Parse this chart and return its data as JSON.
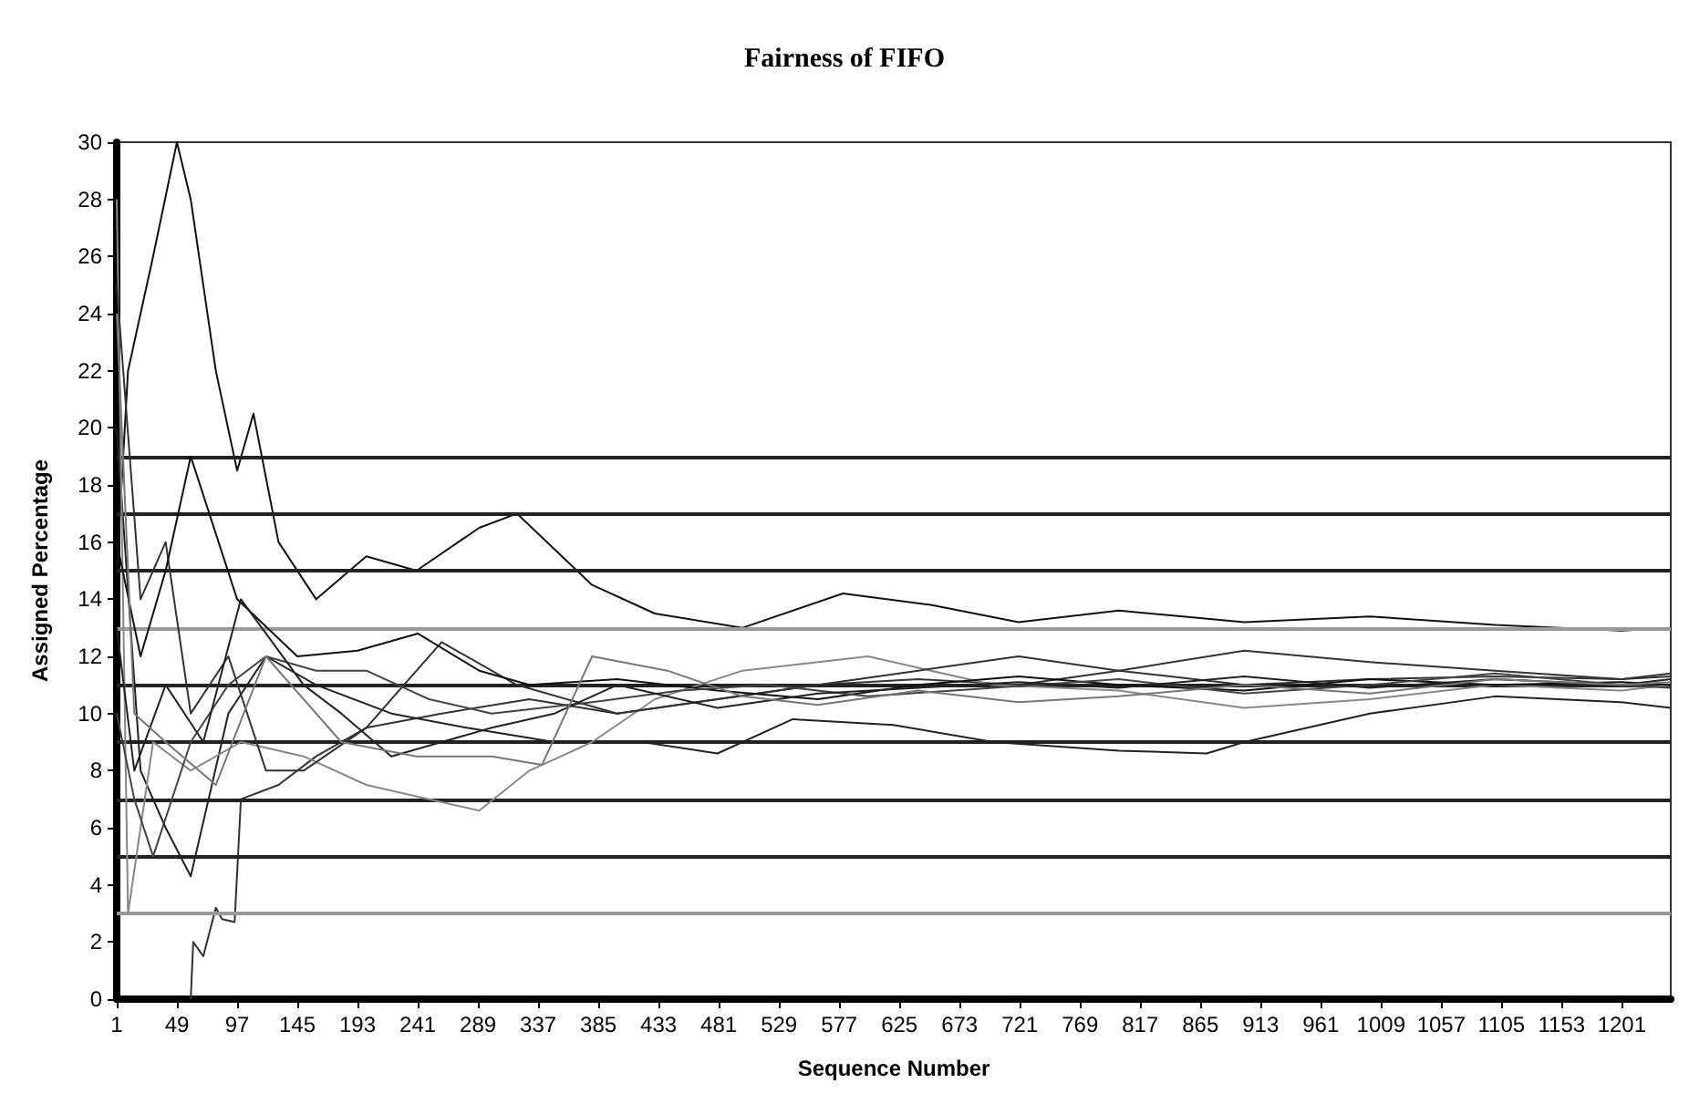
{
  "chart_data": {
    "type": "line",
    "title": "Fairness of FIFO",
    "xlabel": "Sequence Number",
    "ylabel": "Assigned Percentage",
    "xlim": [
      1,
      1240
    ],
    "xticks": [
      1,
      49,
      97,
      145,
      193,
      241,
      289,
      337,
      385,
      433,
      481,
      529,
      577,
      625,
      673,
      721,
      769,
      817,
      865,
      913,
      961,
      1009,
      1057,
      1105,
      1153,
      1201
    ],
    "ylim": [
      0,
      30
    ],
    "yticks": [
      0,
      2,
      4,
      6,
      8,
      10,
      12,
      14,
      16,
      18,
      20,
      22,
      24,
      26,
      28,
      30
    ],
    "grid": false,
    "marker": "none",
    "line_style": "solid",
    "ref_lines": [
      {
        "axis": "y",
        "value": 3,
        "color": "#999999"
      },
      {
        "axis": "y",
        "value": 5,
        "color": "#222222"
      },
      {
        "axis": "y",
        "value": 7,
        "color": "#222222"
      },
      {
        "axis": "y",
        "value": 9,
        "color": "#222222"
      },
      {
        "axis": "y",
        "value": 11,
        "color": "#222222"
      },
      {
        "axis": "y",
        "value": 13,
        "color": "#999999"
      },
      {
        "axis": "y",
        "value": 15,
        "color": "#222222"
      },
      {
        "axis": "y",
        "value": 17,
        "color": "#222222"
      },
      {
        "axis": "y",
        "value": 19,
        "color": "#222222"
      }
    ],
    "series": [
      {
        "color": "#111111",
        "x": [
          1,
          10,
          30,
          49,
          60,
          80,
          97,
          110,
          130,
          160,
          200,
          240,
          290,
          320,
          380,
          430,
          500,
          580,
          650,
          720,
          800,
          900,
          1000,
          1100,
          1200,
          1240
        ],
        "values": [
          15,
          22,
          26,
          30,
          28,
          22,
          18.5,
          20.5,
          16,
          14,
          15.5,
          15,
          16.5,
          17,
          14.5,
          13.5,
          13,
          14.2,
          13.8,
          13.2,
          13.6,
          13.2,
          13.4,
          13.1,
          12.9,
          13
        ]
      },
      {
        "color": "#333333",
        "x": [
          60,
          62,
          70,
          80,
          85,
          95,
          100,
          130,
          160,
          200,
          260,
          330,
          400,
          480,
          560,
          640,
          720,
          800,
          900,
          1000,
          1100,
          1200,
          1240
        ],
        "values": [
          0,
          2,
          1.5,
          3.2,
          2.8,
          2.7,
          7,
          7.5,
          8.5,
          9.5,
          10,
          10.5,
          10,
          10.5,
          11,
          11.2,
          11,
          11.5,
          11,
          11.2,
          11.3,
          11.2,
          11.3
        ]
      },
      {
        "color": "#222222",
        "x": [
          1,
          20,
          40,
          60,
          90,
          120,
          160,
          220,
          280,
          350,
          420,
          480,
          540,
          620,
          700,
          800,
          870,
          900,
          1000,
          1100,
          1200,
          1240
        ],
        "values": [
          20,
          8,
          6,
          4.3,
          10,
          12,
          11,
          10,
          9.5,
          9,
          9,
          8.6,
          9.8,
          9.6,
          9,
          8.7,
          8.6,
          9,
          10,
          10.6,
          10.4,
          10.2
        ]
      },
      {
        "color": "#888888",
        "x": [
          1,
          10,
          30,
          60,
          100,
          150,
          200,
          250,
          290,
          330,
          380,
          430,
          500,
          600,
          700,
          800,
          900,
          1000,
          1100,
          1200,
          1240
        ],
        "values": [
          28,
          3,
          9,
          8,
          9,
          8.5,
          7.5,
          7,
          6.6,
          8,
          9,
          10.5,
          11.5,
          12,
          11,
          10.8,
          10.2,
          10.5,
          11,
          10.8,
          11
        ]
      },
      {
        "color": "#333333",
        "x": [
          1,
          20,
          40,
          60,
          90,
          120,
          150,
          200,
          260,
          320,
          400,
          480,
          560,
          640,
          720,
          800,
          900,
          1000,
          1100,
          1200,
          1240
        ],
        "values": [
          25,
          14,
          16,
          10,
          12,
          8,
          8,
          9.5,
          12.5,
          11,
          10,
          10.5,
          11,
          11.5,
          12,
          11.5,
          12.2,
          11.8,
          11.5,
          11.2,
          11.4
        ]
      },
      {
        "color": "#111111",
        "x": [
          1,
          20,
          40,
          60,
          97,
          145,
          193,
          241,
          290,
          330,
          400,
          480,
          560,
          640,
          720,
          800,
          900,
          1000,
          1100,
          1200,
          1240
        ],
        "values": [
          16,
          12,
          15,
          19,
          14,
          12,
          12.2,
          12.8,
          11.5,
          11,
          11.2,
          10.8,
          10.5,
          11,
          11.3,
          11,
          10.8,
          11.2,
          11,
          11.1,
          11
        ]
      },
      {
        "color": "#444444",
        "x": [
          1,
          15,
          30,
          60,
          90,
          120,
          160,
          200,
          250,
          300,
          380,
          450,
          520,
          600,
          700,
          800,
          900,
          1000,
          1100,
          1200,
          1240
        ],
        "values": [
          10,
          7,
          5,
          9,
          11,
          12,
          11.5,
          11.5,
          10.5,
          10,
          10.4,
          10.8,
          11,
          10.6,
          10.9,
          11.2,
          10.7,
          11,
          11.4,
          11,
          10.9
        ]
      },
      {
        "color": "#222222",
        "x": [
          1,
          15,
          40,
          70,
          100,
          150,
          180,
          220,
          260,
          300,
          350,
          400,
          480,
          560,
          640,
          720,
          800,
          900,
          1000,
          1100,
          1200,
          1240
        ],
        "values": [
          13,
          8,
          11,
          9,
          14,
          11,
          10,
          8.5,
          9,
          9.5,
          10,
          11,
          10.2,
          10.7,
          10.9,
          11.1,
          10.9,
          11.3,
          10.9,
          11.2,
          11,
          11.2
        ]
      },
      {
        "color": "#777777",
        "x": [
          1,
          15,
          40,
          80,
          120,
          180,
          240,
          300,
          340,
          380,
          440,
          500,
          560,
          640,
          720,
          800,
          900,
          1000,
          1100,
          1200,
          1240
        ],
        "values": [
          24,
          10,
          9,
          7.5,
          12,
          9,
          8.5,
          8.5,
          8.2,
          12,
          11.5,
          10.6,
          10.3,
          10.8,
          10.4,
          10.6,
          11,
          10.7,
          11.2,
          11,
          11.1
        ]
      }
    ]
  }
}
